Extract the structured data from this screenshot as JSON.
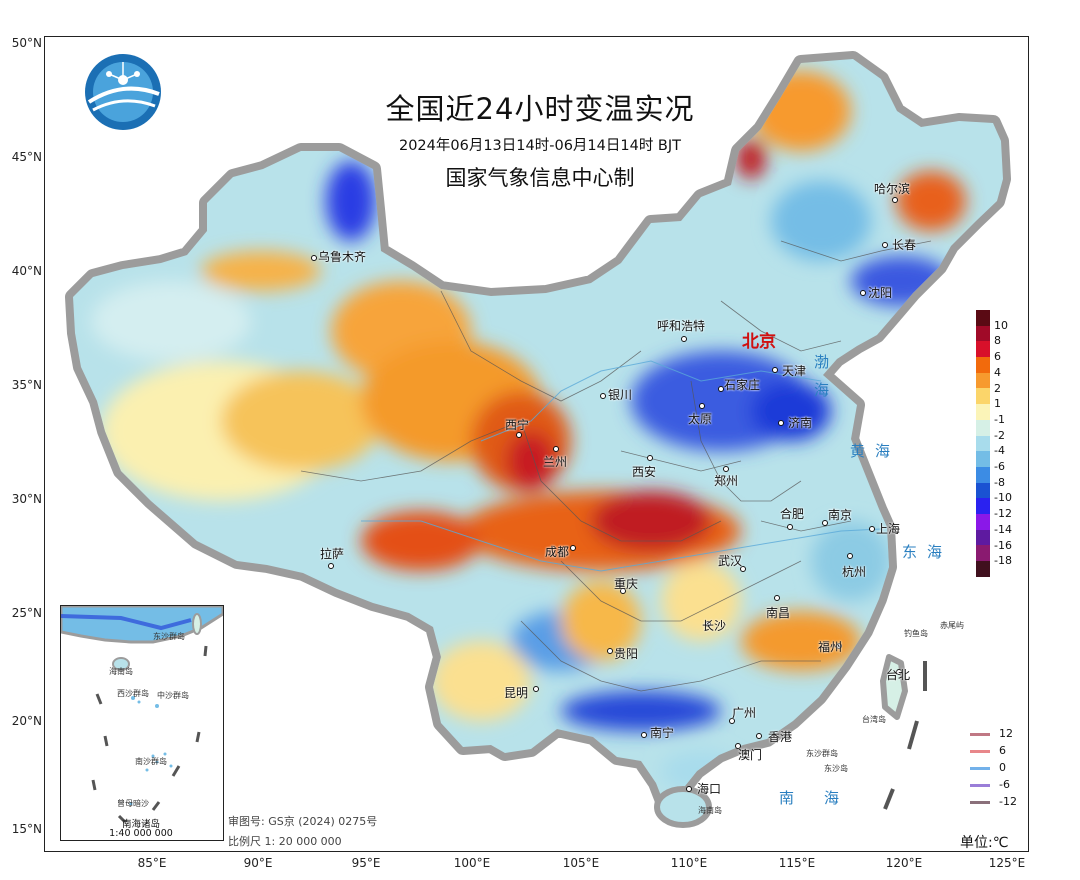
{
  "title": "全国近24小时变温实况",
  "subtitle": "2024年06月13日14时-06月14日14时  BJT",
  "organization": "国家气象信息中心制",
  "capital": "北京",
  "unit": "单位:℃",
  "approval_number": "审图号: GS京 (2024) 0275号",
  "scale": "比例尺  1: 20 000 000",
  "inset": {
    "title": "南海诸岛",
    "scale": "1:40 000 000",
    "islands": [
      "东沙群岛",
      "西沙群岛",
      "中沙群岛",
      "南沙群岛",
      "曾母暗沙",
      "海南岛"
    ]
  },
  "lat_ticks": [
    "50°N",
    "45°N",
    "40°N",
    "35°N",
    "30°N",
    "25°N",
    "20°N",
    "15°N"
  ],
  "lon_ticks": [
    "85°E",
    "90°E",
    "95°E",
    "100°E",
    "105°E",
    "110°E",
    "115°E",
    "120°E",
    "125°E"
  ],
  "cities": [
    "乌鲁木齐",
    "哈尔滨",
    "长春",
    "沈阳",
    "呼和浩特",
    "天津",
    "石家庄",
    "济南",
    "太原",
    "银川",
    "西宁",
    "兰州",
    "西安",
    "郑州",
    "合肥",
    "南京",
    "上海",
    "杭州",
    "武汉",
    "成都",
    "重庆",
    "拉萨",
    "长沙",
    "南昌",
    "福州",
    "贵阳",
    "昆明",
    "南宁",
    "广州",
    "香港",
    "澳门",
    "海口",
    "台北"
  ],
  "seas": [
    "渤海",
    "黄海",
    "东海",
    "南海"
  ],
  "islands_main": [
    "钓鱼岛",
    "赤尾屿",
    "台湾岛",
    "东沙群岛",
    "东沙岛",
    "海南岛"
  ],
  "colorbar": {
    "colors": [
      "#5a0a14",
      "#a00a28",
      "#d8102a",
      "#f26a0c",
      "#f79a2e",
      "#fbd56a",
      "#fbf4b8",
      "#d6f0e6",
      "#a8dcec",
      "#74bde6",
      "#3c8ce4",
      "#1a52d2",
      "#2a22f0",
      "#8a18e8",
      "#5e1aa0",
      "#8a1a70",
      "#40101e"
    ],
    "labels": [
      "10",
      "8",
      "6",
      "4",
      "2",
      "1",
      "-1",
      "-2",
      "-4",
      "-6",
      "-8",
      "-10",
      "-12",
      "-14",
      "-16",
      "-18"
    ]
  },
  "legend_lines": [
    {
      "label": "12",
      "color": "#c07884"
    },
    {
      "label": "6",
      "color": "#e8878a"
    },
    {
      "label": "0",
      "color": "#73b1ea"
    },
    {
      "label": "-6",
      "color": "#9a7ed8"
    },
    {
      "label": "-12",
      "color": "#8a707a"
    }
  ]
}
